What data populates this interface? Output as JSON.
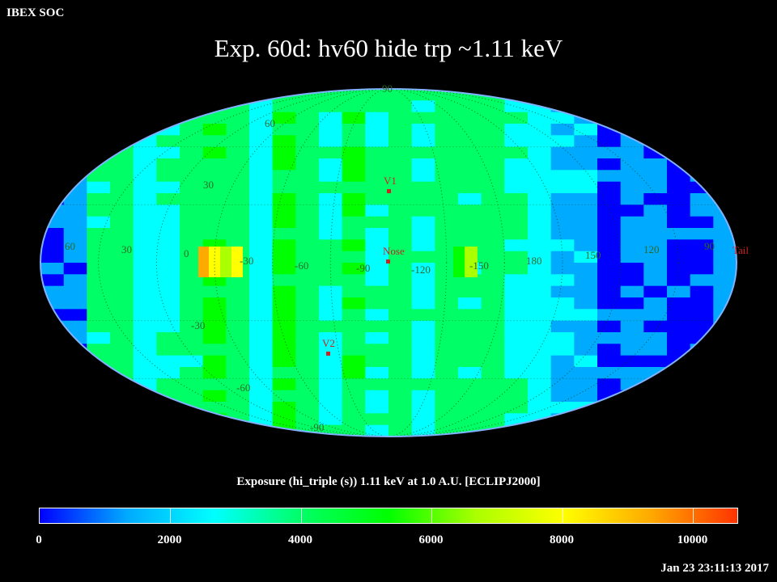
{
  "header": {
    "corner_label": "IBEX SOC",
    "title": "Exp.   60d: hv60 hide trp ~1.11 keV"
  },
  "map": {
    "projection": "Mollweide (ecliptic)",
    "longitude_labels": [
      "60",
      "30",
      "0",
      "-30",
      "-60",
      "-90",
      "-120",
      "-150",
      "180",
      "150",
      "120",
      "90"
    ],
    "latitude_labels_north": [
      "90",
      "60",
      "30"
    ],
    "latitude_labels_south": [
      "-30",
      "-60",
      "-90"
    ],
    "markers": [
      {
        "label": "V1",
        "color": "#cc2222"
      },
      {
        "label": "Nose",
        "color": "#cc2222"
      },
      {
        "label": "V2",
        "color": "#cc2222"
      },
      {
        "label": "Tail",
        "color": "#cc2222"
      }
    ]
  },
  "colorbar": {
    "title": "Exposure (hi_triple (s))  1.11 keV at 1.0 A.U. [ECLIPJ2000]",
    "tick_labels": [
      "0",
      "2000",
      "4000",
      "6000",
      "8000",
      "10000"
    ],
    "min": 0,
    "max": 10700,
    "colors": [
      "#0000ff",
      "#00aaff",
      "#00ffff",
      "#00ff66",
      "#00ff00",
      "#aaff00",
      "#ffff00",
      "#ffaa00",
      "#ff3300"
    ]
  },
  "footer": {
    "timestamp": "Jan 23 23:11:13 2017"
  }
}
